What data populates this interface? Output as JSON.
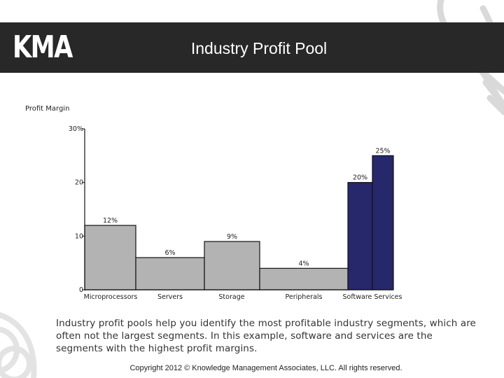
{
  "header": {
    "logo_text": "KMA",
    "title": "Industry Profit Pool"
  },
  "chart_data": {
    "type": "bar",
    "title": "",
    "xlabel": "",
    "ylabel": "Profit Margin",
    "ylim": [
      0,
      30
    ],
    "y_ticks": [
      "0",
      "10",
      "20",
      "30%"
    ],
    "y_tick_values": [
      0,
      10,
      20,
      30
    ],
    "grid": false,
    "categories": [
      "Microprocessors",
      "Servers",
      "Storage",
      "Peripherals",
      "Software",
      "Services"
    ],
    "x_tick_labels": [
      "Microprocessors",
      "Servers",
      "Storage",
      "Peripherals",
      "Software Services"
    ],
    "values": [
      12,
      6,
      9,
      4,
      20,
      25
    ],
    "data_labels": [
      "12%",
      "6%",
      "9%",
      "4%",
      "20%",
      "25%"
    ],
    "colors": {
      "default": "#b3b3b3",
      "highlight": "#27276b"
    },
    "highlighted": [
      "Software",
      "Services"
    ]
  },
  "caption": "Industry profit pools help you identify the most profitable industry segments, which are often not the largest segments.  In this example, software and services are the segments with the highest profit margins.",
  "footer": {
    "copyright": "Copyright 2012 © Knowledge Management Associates, LLC.  All rights reserved."
  }
}
